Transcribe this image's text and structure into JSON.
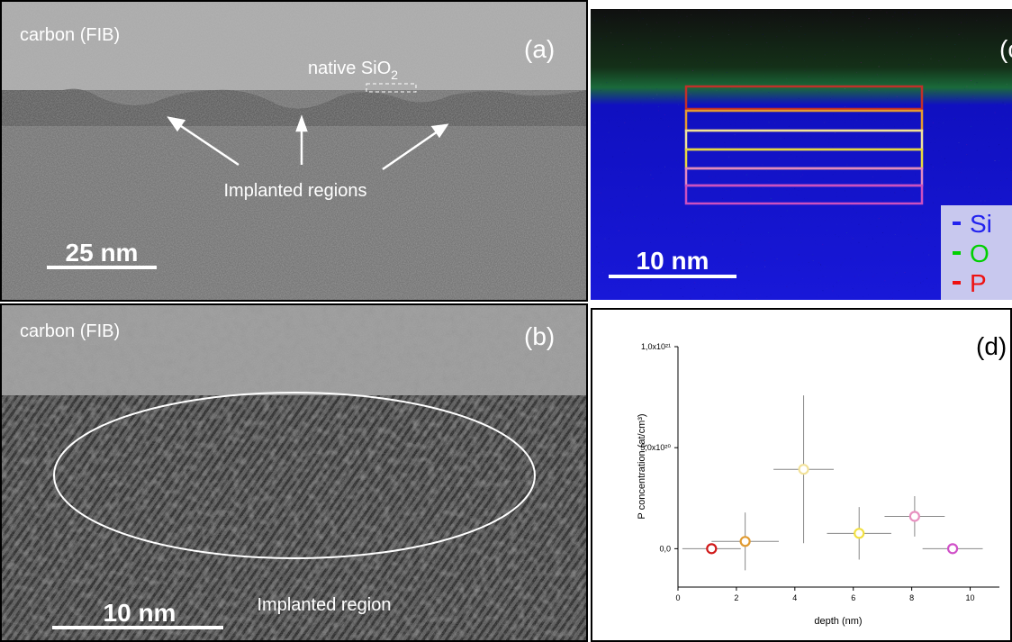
{
  "panel_a": {
    "label": "(a)",
    "layer": "carbon (FIB)",
    "oxide_label": "native SiO",
    "oxide_subscript": "2",
    "annotation": "Implanted regions",
    "scale_bar": "25 nm"
  },
  "panel_b": {
    "label": "(b)",
    "layer": "carbon (FIB)",
    "annotation": "Implanted region",
    "scale_bar": "10 nm"
  },
  "panel_c": {
    "label": "(c)",
    "scale_bar": "10 nm",
    "legend": [
      {
        "name": "Si",
        "color": "#2222ee"
      },
      {
        "name": "O",
        "color": "#00d000"
      },
      {
        "name": "P",
        "color": "#ee1111"
      }
    ]
  },
  "chart_data": {
    "type": "scatter",
    "label": "(d)",
    "xlabel": "depth (nm)",
    "ylabel": "P concentration (at/cm³)",
    "x": [
      1.15,
      2.3,
      4.3,
      6.2,
      8.1,
      9.4
    ],
    "values": [
      0,
      3.6e+19,
      3.93e+20,
      7.6e+19,
      1.6e+20,
      0
    ],
    "x_errors": [
      1.0,
      1.15,
      1.03,
      1.1,
      1.03,
      1.03
    ],
    "y_errors": [
      null,
      1.43e+20,
      3.66e+20,
      1.3e+20,
      1e+20,
      null
    ],
    "colors": [
      "#d01818",
      "#e09a30",
      "#f2e29a",
      "#f2e040",
      "#e890c0",
      "#d050c8"
    ],
    "xlim": [
      0,
      11
    ],
    "xticks": [
      0,
      2,
      4,
      6,
      8,
      10
    ],
    "ylim": [
      -1.9e+20,
      1e+21
    ],
    "yticks": [
      {
        "value": 0,
        "label": "0,0"
      },
      {
        "value": 5e+20,
        "label": "5,0x10²⁰"
      },
      {
        "value": 1e+21,
        "label": "1,0x10²¹"
      }
    ]
  }
}
